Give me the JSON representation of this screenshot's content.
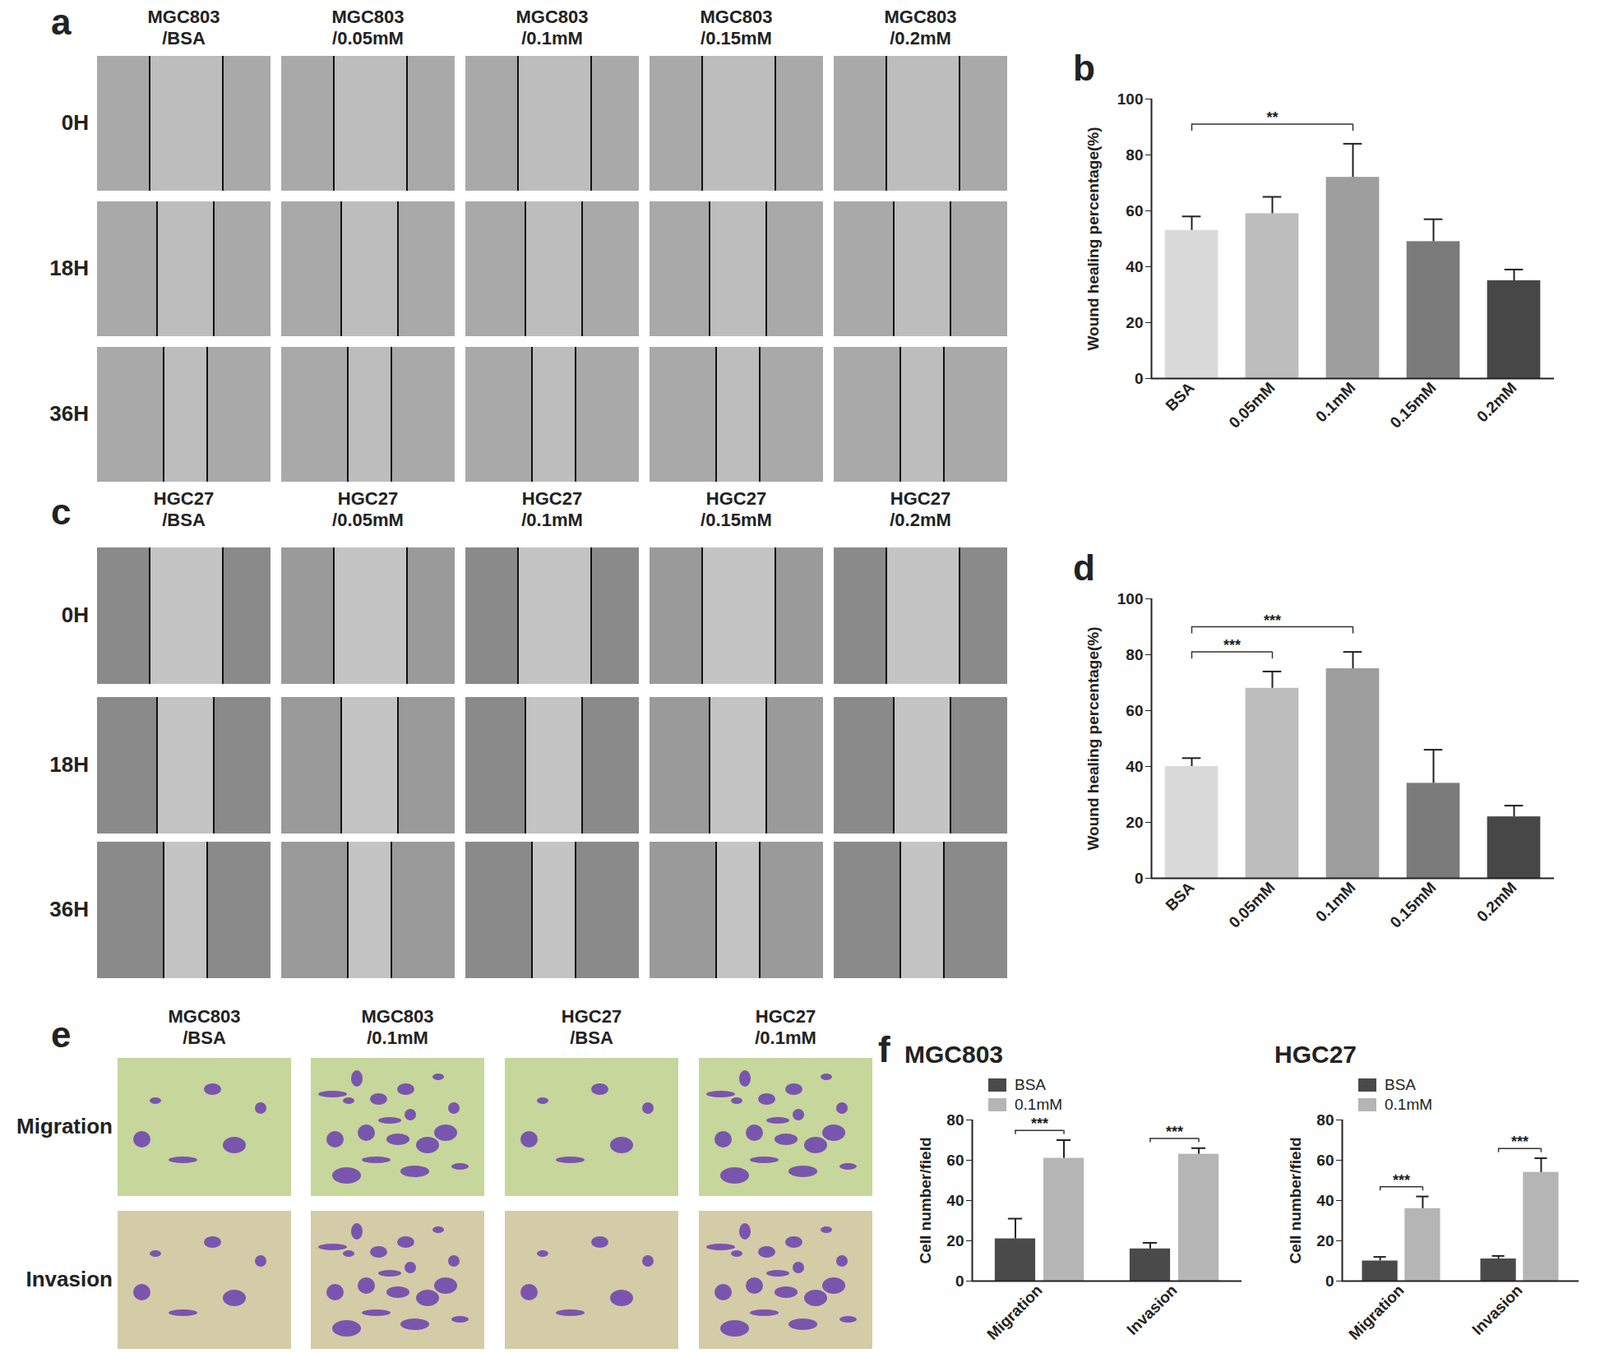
{
  "image_panels": [
    {
      "panel_label": "a",
      "kind": "wound",
      "columns": [
        [
          "MGC803",
          "/BSA"
        ],
        [
          "MGC803",
          "/0.05mM"
        ],
        [
          "MGC803",
          "/0.1mM"
        ],
        [
          "MGC803",
          "/0.15mM"
        ],
        [
          "MGC803",
          "/0.2mM"
        ]
      ],
      "rows": [
        "0H",
        "18H",
        "36H"
      ]
    },
    {
      "panel_label": "c",
      "kind": "wound",
      "columns": [
        [
          "HGC27",
          "/BSA"
        ],
        [
          "HGC27",
          "/0.05mM"
        ],
        [
          "HGC27",
          "/0.1mM"
        ],
        [
          "HGC27",
          "/0.15mM"
        ],
        [
          "HGC27",
          "/0.2mM"
        ]
      ],
      "rows": [
        "0H",
        "18H",
        "36H"
      ]
    },
    {
      "panel_label": "e",
      "kind": "transwell",
      "columns": [
        [
          "MGC803",
          "/BSA"
        ],
        [
          "MGC803",
          "/0.1mM"
        ],
        [
          "HGC27",
          "/BSA"
        ],
        [
          "HGC27",
          "/0.1mM"
        ]
      ],
      "rows": [
        "Migration",
        "Invasion"
      ]
    }
  ],
  "chart_data": [
    {
      "panel_label": "b",
      "type": "bar",
      "categories": [
        "BSA",
        "0.05mM",
        "0.1mM",
        "0.15mM",
        "0.2mM"
      ],
      "values": [
        53,
        59,
        72,
        49,
        35
      ],
      "errors": [
        5,
        6,
        12,
        8,
        4
      ],
      "colors": [
        "#dadada",
        "#bdbdbd",
        "#9e9e9e",
        "#7a7a7a",
        "#474747"
      ],
      "ylabel": "Wound healing percentage(%)",
      "ylim": [
        0,
        100
      ],
      "yticks": [
        0,
        20,
        40,
        60,
        80,
        100
      ],
      "annotations": [
        {
          "from": "BSA",
          "to": "0.1mM",
          "text": "**"
        }
      ]
    },
    {
      "panel_label": "d",
      "type": "bar",
      "categories": [
        "BSA",
        "0.05mM",
        "0.1mM",
        "0.15mM",
        "0.2mM"
      ],
      "values": [
        40,
        68,
        75,
        34,
        22
      ],
      "errors": [
        3,
        6,
        6,
        12,
        4
      ],
      "colors": [
        "#dadada",
        "#bdbdbd",
        "#9e9e9e",
        "#7a7a7a",
        "#474747"
      ],
      "ylabel": "Wound healing percentage(%)",
      "ylim": [
        0,
        100
      ],
      "yticks": [
        0,
        20,
        40,
        60,
        80,
        100
      ],
      "annotations": [
        {
          "from": "BSA",
          "to": "0.05mM",
          "text": "***"
        },
        {
          "from": "BSA",
          "to": "0.1mM",
          "text": "***"
        }
      ]
    },
    {
      "panel_label": "f",
      "title": "MGC803",
      "type": "bar",
      "categories": [
        "Migration",
        "Invasion"
      ],
      "series": [
        {
          "name": "BSA",
          "color": "#4a4a4a",
          "values": [
            21,
            16
          ],
          "errors": [
            10,
            3
          ]
        },
        {
          "name": "0.1mM",
          "color": "#b5b5b5",
          "values": [
            61,
            63
          ],
          "errors": [
            9,
            3
          ]
        }
      ],
      "ylabel": "Cell number/field",
      "ylim": [
        0,
        80
      ],
      "yticks": [
        0,
        20,
        40,
        60,
        80
      ],
      "legend": "top-left",
      "annotations": [
        {
          "category": "Migration",
          "text": "***"
        },
        {
          "category": "Invasion",
          "text": "***"
        }
      ]
    },
    {
      "title": "HGC27",
      "type": "bar",
      "categories": [
        "Migration",
        "Invasion"
      ],
      "series": [
        {
          "name": "BSA",
          "color": "#4a4a4a",
          "values": [
            10,
            11
          ],
          "errors": [
            2,
            1.5
          ]
        },
        {
          "name": "0.1mM",
          "color": "#b5b5b5",
          "values": [
            36,
            54
          ],
          "errors": [
            6,
            7
          ]
        }
      ],
      "ylabel": "Cell number/field",
      "ylim": [
        0,
        80
      ],
      "yticks": [
        0,
        20,
        40,
        60,
        80
      ],
      "legend": "top-left",
      "annotations": [
        {
          "category": "Migration",
          "text": "***"
        },
        {
          "category": "Invasion",
          "text": "***"
        }
      ]
    }
  ]
}
